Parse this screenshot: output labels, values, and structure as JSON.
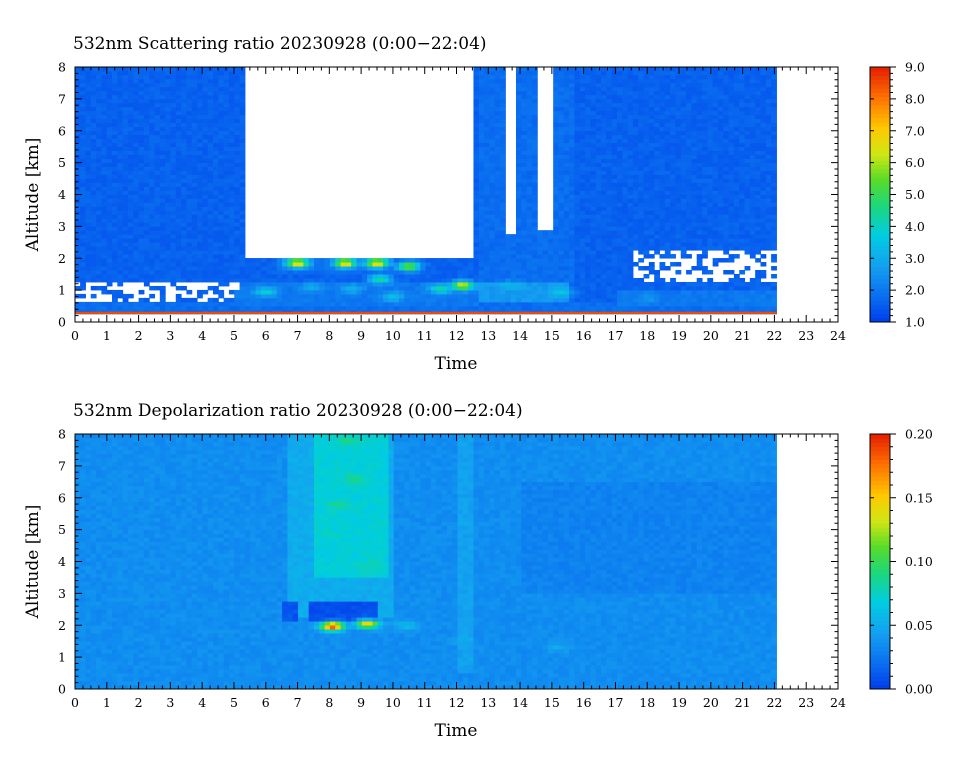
{
  "chart_data": [
    {
      "type": "heatmap",
      "title": "532nm Scattering ratio  20230928 (0:00−22:04)",
      "xlabel": "Time",
      "ylabel": "Altitude [km]",
      "xlim": [
        0,
        24
      ],
      "ylim": [
        0,
        8
      ],
      "x_ticks": [
        "0",
        "1",
        "2",
        "3",
        "4",
        "5",
        "6",
        "7",
        "8",
        "9",
        "10",
        "11",
        "12",
        "13",
        "14",
        "15",
        "16",
        "17",
        "18",
        "19",
        "20",
        "21",
        "22",
        "23",
        "24"
      ],
      "y_ticks": [
        "0",
        "1",
        "2",
        "3",
        "4",
        "5",
        "6",
        "7",
        "8"
      ],
      "colorbar": {
        "min": 1.0,
        "max": 9.0,
        "ticks": [
          "1.0",
          "2.0",
          "3.0",
          "4.0",
          "5.0",
          "6.0",
          "7.0",
          "8.0",
          "9.0"
        ]
      },
      "data_end_time": 22.07,
      "background_value": 1.6,
      "regions": [
        {
          "x0": 0,
          "x1": 5.5,
          "y0": 1.25,
          "y1": 8,
          "value": 1.6
        },
        {
          "x0": 12.7,
          "x1": 15.8,
          "y0": 1.2,
          "y1": 8,
          "value": 1.8
        },
        {
          "x0": 15.8,
          "x1": 22.07,
          "y0": 1.4,
          "y1": 8,
          "value": 1.6
        },
        {
          "x0": 0,
          "x1": 22.07,
          "y0": 0.3,
          "y1": 0.6,
          "value": 1.8
        },
        {
          "x0": 5,
          "x1": 12.7,
          "y0": 0.5,
          "y1": 1.3,
          "value": 2.0
        },
        {
          "x0": 12.7,
          "x1": 15.5,
          "y0": 0.6,
          "y1": 1.3,
          "value": 2.6
        },
        {
          "x0": 17,
          "x1": 22.07,
          "y0": 0.5,
          "y1": 1.05,
          "value": 2.0
        },
        {
          "x0": 6.3,
          "x1": 10,
          "y0": 1.5,
          "y1": 2.0,
          "value": 1.8
        }
      ],
      "clear_gaps": [
        {
          "x0": 5.4,
          "x1": 12.6,
          "y0": 2.0,
          "y1": 8
        },
        {
          "x0": 13.5,
          "x1": 13.9,
          "y0": 2.8,
          "y1": 8
        },
        {
          "x0": 14.6,
          "x1": 15.0,
          "y0": 2.9,
          "y1": 8
        }
      ],
      "hotspots": [
        {
          "t": 12.2,
          "z": 1.15,
          "value": 6.5
        },
        {
          "t": 10.5,
          "z": 1.75,
          "value": 6.0
        },
        {
          "t": 7.0,
          "z": 1.85,
          "value": 7.0
        },
        {
          "t": 8.5,
          "z": 1.85,
          "value": 7.0
        },
        {
          "t": 9.5,
          "z": 1.85,
          "value": 7.0
        },
        {
          "t": 6.0,
          "z": 0.95,
          "value": 4.0
        },
        {
          "t": 9.6,
          "z": 1.35,
          "value": 4.5
        },
        {
          "t": 11.5,
          "z": 1.05,
          "value": 4.5
        },
        {
          "t": 10.0,
          "z": 0.8,
          "value": 3.5
        },
        {
          "t": 13.7,
          "z": 1.15,
          "value": 3.2
        },
        {
          "t": 15.3,
          "z": 0.95,
          "value": 3.5
        },
        {
          "t": 7.5,
          "z": 1.1,
          "value": 3.0
        },
        {
          "t": 8.7,
          "z": 1.05,
          "value": 3.2
        },
        {
          "t": 18.0,
          "z": 0.75,
          "value": 2.6
        }
      ],
      "surface_band": {
        "y0": 0.25,
        "y1": 0.32,
        "value": 8.5
      }
    },
    {
      "type": "heatmap",
      "title": "532nm Depolarization ratio  20230928 (0:00−22:04)",
      "xlabel": "Time",
      "ylabel": "Altitude [km]",
      "xlim": [
        0,
        24
      ],
      "ylim": [
        0,
        8
      ],
      "x_ticks": [
        "0",
        "1",
        "2",
        "3",
        "4",
        "5",
        "6",
        "7",
        "8",
        "9",
        "10",
        "11",
        "12",
        "13",
        "14",
        "15",
        "16",
        "17",
        "18",
        "19",
        "20",
        "21",
        "22",
        "23",
        "24"
      ],
      "y_ticks": [
        "0",
        "1",
        "2",
        "3",
        "4",
        "5",
        "6",
        "7",
        "8"
      ],
      "colorbar": {
        "min": 0.0,
        "max": 0.2,
        "ticks": [
          "0.00",
          "0.05",
          "0.10",
          "0.15",
          "0.20"
        ]
      },
      "data_end_time": 22.07,
      "background_value": 0.035,
      "regions": [
        {
          "x0": 6.7,
          "x1": 10.0,
          "y0": 2.3,
          "y1": 8,
          "value": 0.05
        },
        {
          "x0": 7.5,
          "x1": 9.8,
          "y0": 3.5,
          "y1": 8,
          "value": 0.07
        },
        {
          "x0": 7.3,
          "x1": 9.5,
          "y0": 2.1,
          "y1": 2.7,
          "value": 0.008
        },
        {
          "x0": 6.5,
          "x1": 7.0,
          "y0": 2.1,
          "y1": 2.8,
          "value": 0.01
        },
        {
          "x0": 12,
          "x1": 12.5,
          "y0": 0.5,
          "y1": 8,
          "value": 0.045
        },
        {
          "x0": 14,
          "x1": 22.07,
          "y0": 3,
          "y1": 6.5,
          "value": 0.03
        }
      ],
      "hotspots": [
        {
          "t": 8.1,
          "z": 1.97,
          "value": 0.19
        },
        {
          "t": 9.2,
          "z": 2.05,
          "value": 0.15
        },
        {
          "t": 10.4,
          "z": 2.0,
          "value": 0.06
        },
        {
          "t": 8.6,
          "z": 7.8,
          "value": 0.09
        },
        {
          "t": 8.8,
          "z": 6.6,
          "value": 0.09
        },
        {
          "t": 8.3,
          "z": 5.8,
          "value": 0.085
        },
        {
          "t": 9.3,
          "z": 3.9,
          "value": 0.08
        },
        {
          "t": 8.0,
          "z": 4.9,
          "value": 0.075
        },
        {
          "t": 12.2,
          "z": 1.5,
          "value": 0.05
        },
        {
          "t": 15.2,
          "z": 1.3,
          "value": 0.05
        },
        {
          "t": 17.0,
          "z": 1.75,
          "value": 0.01
        }
      ]
    }
  ]
}
